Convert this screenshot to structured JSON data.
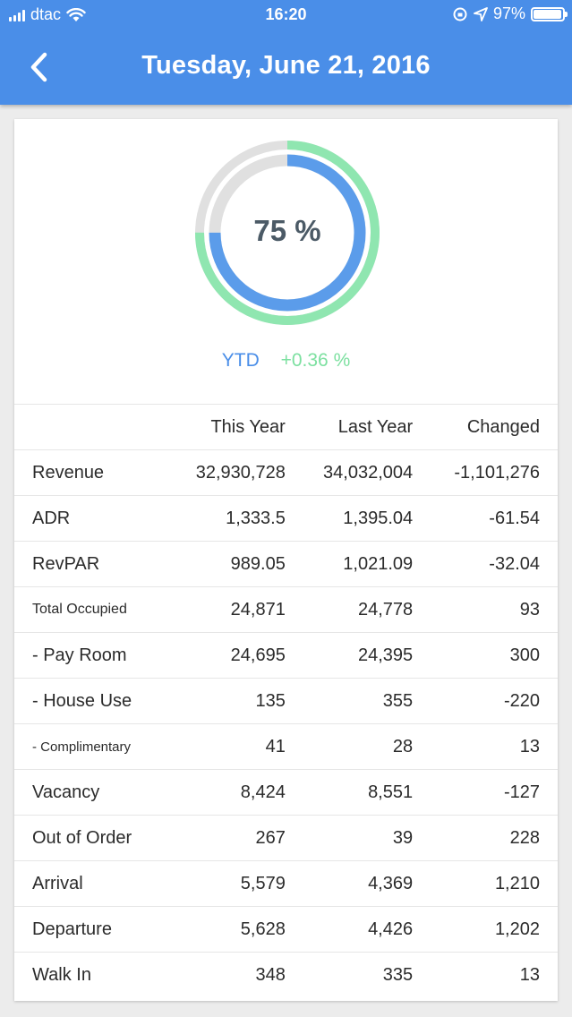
{
  "status_bar": {
    "carrier": "dtac",
    "time": "16:20",
    "battery": "97%"
  },
  "header": {
    "title": "Tuesday, June 21, 2016"
  },
  "gauge": {
    "label": "75 %",
    "inner_fraction": 0.75,
    "outer_fraction": 0.75,
    "inner_color": "#5b9cea",
    "outer_color": "#8fe6b0",
    "track_color": "#e0e0e0"
  },
  "ytd": {
    "label": "YTD",
    "change": "+0.36 %"
  },
  "table": {
    "columns": [
      "",
      "This Year",
      "Last Year",
      "Changed"
    ],
    "rows": [
      {
        "label": "Revenue",
        "this_year": "32,930,728",
        "last_year": "34,032,004",
        "changed": "-1,101,276"
      },
      {
        "label": "ADR",
        "this_year": "1,333.5",
        "last_year": "1,395.04",
        "changed": "-61.54"
      },
      {
        "label": "RevPAR",
        "this_year": "989.05",
        "last_year": "1,021.09",
        "changed": "-32.04"
      },
      {
        "label": "Total Occupied",
        "this_year": "24,871",
        "last_year": "24,778",
        "changed": "93"
      },
      {
        "label": "- Pay Room",
        "this_year": "24,695",
        "last_year": "24,395",
        "changed": "300"
      },
      {
        "label": "- House Use",
        "this_year": "135",
        "last_year": "355",
        "changed": "-220"
      },
      {
        "label": "- Complimentary",
        "this_year": "41",
        "last_year": "28",
        "changed": "13"
      },
      {
        "label": "Vacancy",
        "this_year": "8,424",
        "last_year": "8,551",
        "changed": "-127"
      },
      {
        "label": "Out of Order",
        "this_year": "267",
        "last_year": "39",
        "changed": "228"
      },
      {
        "label": "Arrival",
        "this_year": "5,579",
        "last_year": "4,369",
        "changed": "1,210"
      },
      {
        "label": "Departure",
        "this_year": "5,628",
        "last_year": "4,426",
        "changed": "1,202"
      },
      {
        "label": "Walk In",
        "this_year": "348",
        "last_year": "335",
        "changed": "13"
      }
    ]
  }
}
